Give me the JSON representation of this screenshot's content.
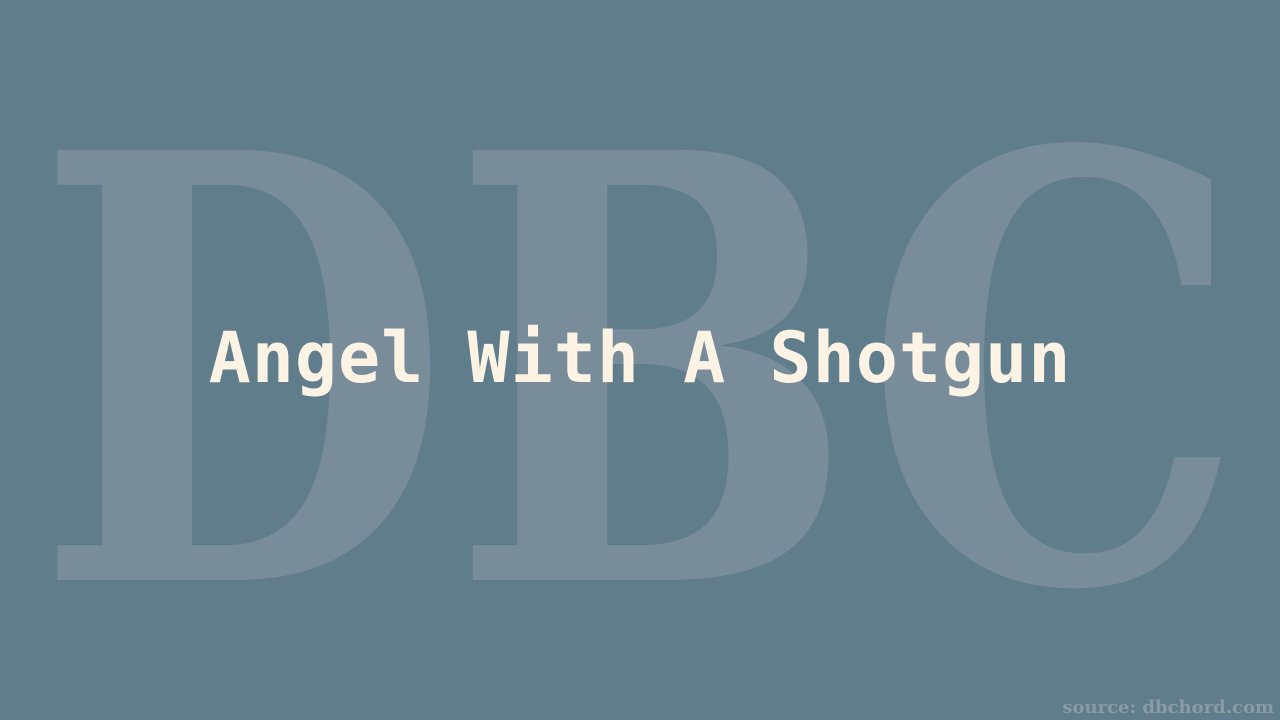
{
  "watermark": {
    "letters": "DBC",
    "color": "#788d99"
  },
  "title": "Angel With A Shotgun",
  "source": "source: dbchord.com",
  "colors": {
    "background": "#607d8b",
    "title": "#fdf3e4",
    "source": "#8a9ba5"
  }
}
